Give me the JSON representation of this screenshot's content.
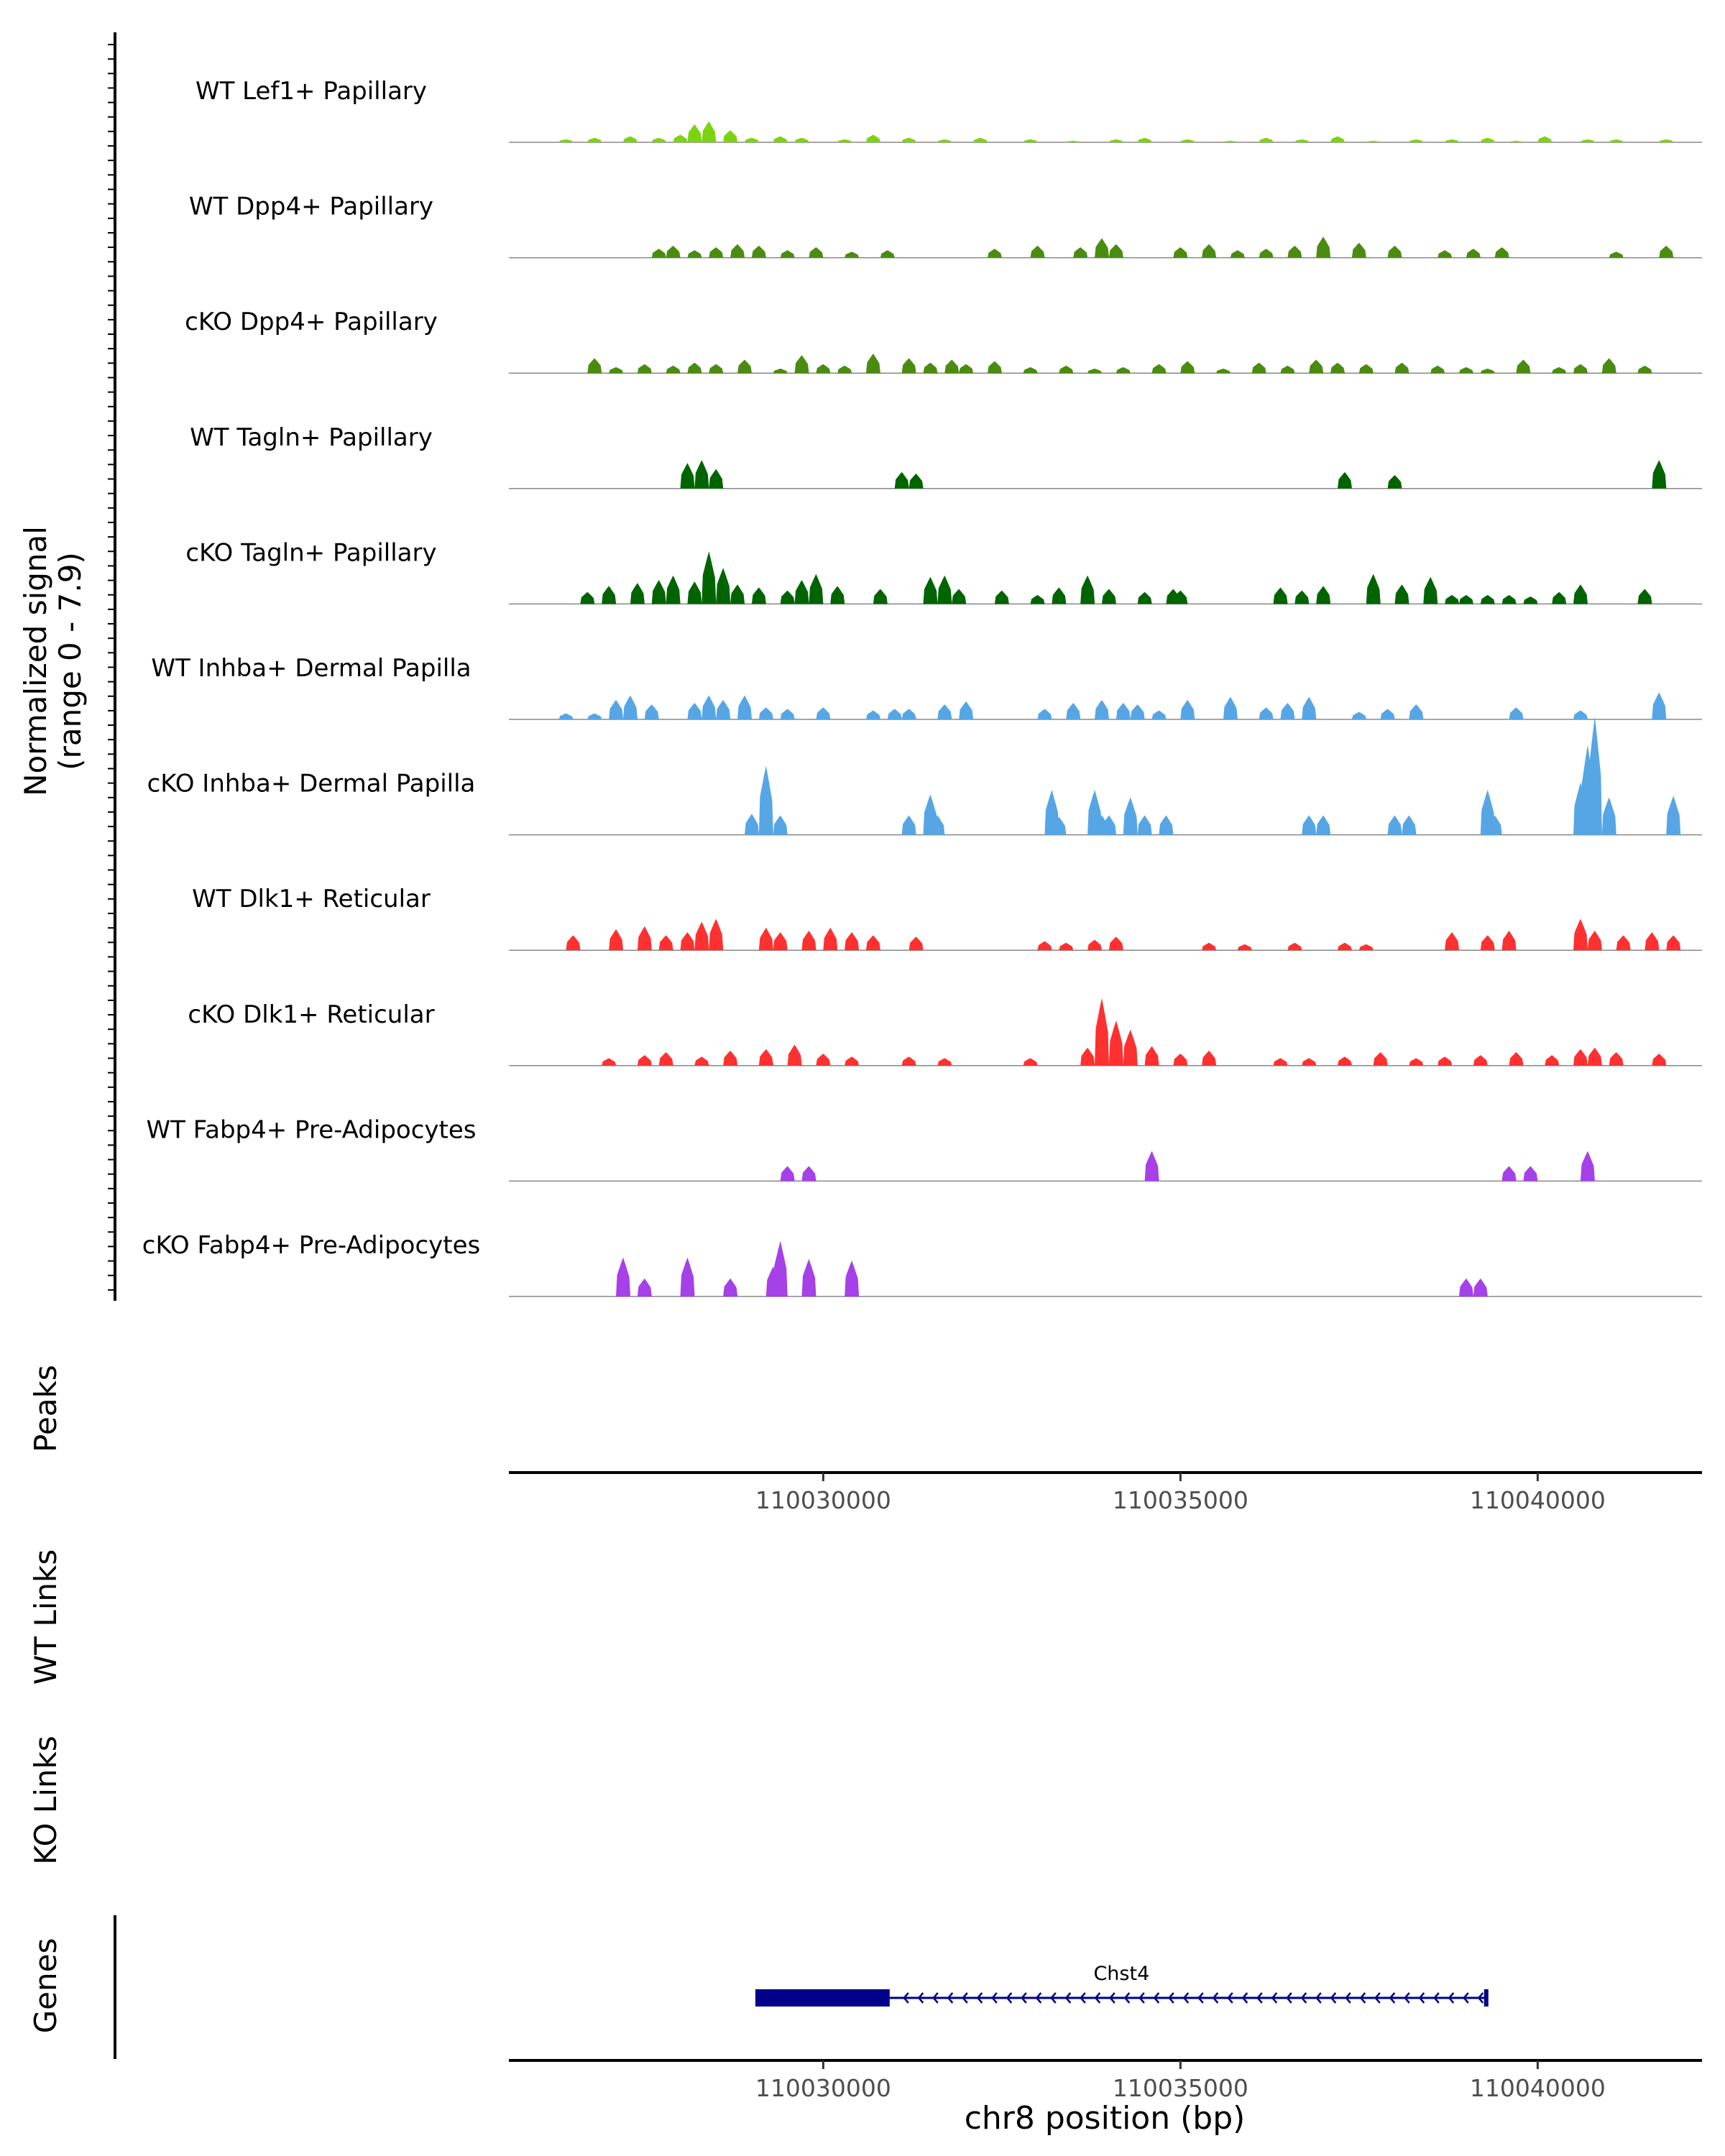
{
  "chart_data": {
    "type": "area",
    "ylabel_line1": "Normalized signal",
    "ylabel_line2": "(range 0 - 7.9)",
    "ylim": [
      0,
      7.9
    ],
    "xlim": [
      110025600,
      110042300
    ],
    "xticks": [
      110030000,
      110035000,
      110040000
    ],
    "xtick_labels": [
      "110030000",
      "110035000",
      "110040000"
    ],
    "xlabel": "chr8 position (bp)",
    "track_labels": {
      "peaks": "Peaks",
      "wt_links": "WT Links",
      "ko_links": "KO Links",
      "genes": "Genes"
    },
    "series": [
      {
        "name": "WT Lef1+ Papillary",
        "color": "#7CD312",
        "x": [
          110026400,
          110026800,
          110027300,
          110027700,
          110028000,
          110028200,
          110028400,
          110028700,
          110029000,
          110029400,
          110029700,
          110030300,
          110030700,
          110031200,
          110031700,
          110032200,
          110032900,
          110033500,
          110034100,
          110034500,
          110035100,
          110035700,
          110036200,
          110036700,
          110037200,
          110037700,
          110038300,
          110038800,
          110039300,
          110039700,
          110040100,
          110040700,
          110041100,
          110041800
        ],
        "values": [
          0.2,
          0.3,
          0.4,
          0.3,
          0.5,
          1.2,
          1.4,
          0.8,
          0.3,
          0.4,
          0.3,
          0.2,
          0.5,
          0.3,
          0.2,
          0.3,
          0.2,
          0.1,
          0.2,
          0.3,
          0.2,
          0.1,
          0.3,
          0.2,
          0.4,
          0.1,
          0.2,
          0.2,
          0.3,
          0.1,
          0.4,
          0.2,
          0.2,
          0.2
        ]
      },
      {
        "name": "WT Dpp4+ Papillary",
        "color": "#4A8C10",
        "x": [
          110027700,
          110027900,
          110028200,
          110028500,
          110028800,
          110029100,
          110029500,
          110029900,
          110030400,
          110030900,
          110032400,
          110033000,
          110033600,
          110033900,
          110034100,
          110035000,
          110035400,
          110035800,
          110036200,
          110036600,
          110037000,
          110037500,
          110038000,
          110038700,
          110039100,
          110039500,
          110041100,
          110041800
        ],
        "values": [
          0.6,
          0.8,
          0.5,
          0.7,
          0.9,
          0.8,
          0.5,
          0.7,
          0.4,
          0.5,
          0.6,
          0.8,
          0.7,
          1.3,
          0.9,
          0.7,
          0.9,
          0.5,
          0.6,
          0.8,
          1.4,
          1.0,
          0.8,
          0.5,
          0.6,
          0.7,
          0.4,
          0.8
        ]
      },
      {
        "name": "cKO Dpp4+ Papillary",
        "color": "#4A8C10",
        "x": [
          110026800,
          110027100,
          110027500,
          110027900,
          110028200,
          110028500,
          110028900,
          110029400,
          110029700,
          110030000,
          110030300,
          110030700,
          110031200,
          110031500,
          110031800,
          110032000,
          110032400,
          110032900,
          110033400,
          110033800,
          110034200,
          110034700,
          110035100,
          110035600,
          110036100,
          110036500,
          110036900,
          110037200,
          110037600,
          110038100,
          110038600,
          110039000,
          110039300,
          110039800,
          110040300,
          110040600,
          110041000,
          110041500
        ],
        "values": [
          1.0,
          0.4,
          0.6,
          0.5,
          0.7,
          0.6,
          0.9,
          0.3,
          1.2,
          0.6,
          0.5,
          1.3,
          1.0,
          0.7,
          0.9,
          0.6,
          0.8,
          0.4,
          0.5,
          0.3,
          0.4,
          0.6,
          0.8,
          0.3,
          0.7,
          0.5,
          0.9,
          0.7,
          0.6,
          0.7,
          0.5,
          0.4,
          0.3,
          0.9,
          0.4,
          0.6,
          1.0,
          0.5
        ]
      },
      {
        "name": "WT Tagln+ Papillary",
        "color": "#006400",
        "x": [
          110028100,
          110028300,
          110028500,
          110031100,
          110031300,
          110037300,
          110038000,
          110041700
        ],
        "values": [
          1.7,
          1.9,
          1.3,
          1.1,
          1.0,
          1.1,
          0.9,
          1.9
        ]
      },
      {
        "name": "cKO Tagln+ Papillary",
        "color": "#006400",
        "x": [
          110026700,
          110027000,
          110027400,
          110027700,
          110027900,
          110028200,
          110028400,
          110028600,
          110028800,
          110029100,
          110029500,
          110029700,
          110029900,
          110030200,
          110030800,
          110031500,
          110031700,
          110031900,
          110032500,
          110033000,
          110033300,
          110033700,
          110034000,
          110034500,
          110034900,
          110035000,
          110036400,
          110036700,
          110037000,
          110037700,
          110038100,
          110038500,
          110038800,
          110039000,
          110039300,
          110039600,
          110039900,
          110040300,
          110040600,
          110041500
        ],
        "values": [
          0.8,
          1.2,
          1.4,
          1.6,
          1.9,
          1.5,
          3.5,
          2.4,
          1.3,
          1.1,
          0.9,
          1.6,
          2.0,
          1.2,
          1.0,
          1.8,
          1.9,
          1.0,
          0.9,
          0.6,
          1.1,
          1.9,
          1.0,
          0.8,
          1.0,
          0.9,
          1.1,
          0.9,
          1.2,
          2.0,
          1.3,
          1.8,
          0.6,
          0.6,
          0.6,
          0.6,
          0.5,
          0.8,
          1.3,
          1.0
        ]
      },
      {
        "name": "WT Inhba+ Dermal Papilla",
        "color": "#56A6E6",
        "x": [
          110026400,
          110026800,
          110027100,
          110027300,
          110027600,
          110028200,
          110028400,
          110028600,
          110028900,
          110029200,
          110029500,
          110030000,
          110030700,
          110031000,
          110031200,
          110031700,
          110032000,
          110033100,
          110033500,
          110033900,
          110034200,
          110034400,
          110034700,
          110035100,
          110035700,
          110036200,
          110036500,
          110036800,
          110037500,
          110037900,
          110038300,
          110039700,
          110040600,
          110041700
        ],
        "values": [
          0.4,
          0.4,
          1.3,
          1.6,
          1.0,
          1.1,
          1.6,
          1.3,
          1.6,
          0.8,
          0.7,
          0.8,
          0.6,
          0.7,
          0.7,
          1.0,
          1.2,
          0.7,
          1.1,
          1.3,
          1.1,
          1.0,
          0.6,
          1.3,
          1.5,
          0.8,
          1.1,
          1.5,
          0.5,
          0.7,
          1.0,
          0.8,
          0.6,
          1.8
        ]
      },
      {
        "name": "cKO Inhba+ Dermal Papilla",
        "color": "#56A6E6",
        "x": [
          110029000,
          110029200,
          110029400,
          110031200,
          110031500,
          110031600,
          110033200,
          110033300,
          110033800,
          110033900,
          110034000,
          110034300,
          110034500,
          110034800,
          110036800,
          110037000,
          110038000,
          110038200,
          110039300,
          110039400,
          110040600,
          110040700,
          110040800,
          110041000,
          110041900
        ],
        "values": [
          1.4,
          4.6,
          1.3,
          1.3,
          2.7,
          1.3,
          3.0,
          1.2,
          3.0,
          1.3,
          1.3,
          2.5,
          1.3,
          1.3,
          1.3,
          1.3,
          1.3,
          1.3,
          3.0,
          1.3,
          3.5,
          6.0,
          7.9,
          2.5,
          2.6
        ]
      },
      {
        "name": "WT Dlk1+ Reticular",
        "color": "#FF3030",
        "x": [
          110026500,
          110027100,
          110027500,
          110027800,
          110028100,
          110028300,
          110028500,
          110029200,
          110029400,
          110029800,
          110030100,
          110030400,
          110030700,
          110031300,
          110033100,
          110033400,
          110033800,
          110034100,
          110035400,
          110035900,
          110036600,
          110037300,
          110037600,
          110038800,
          110039300,
          110039600,
          110040600,
          110040800,
          110041200,
          110041600,
          110041900
        ],
        "values": [
          1.0,
          1.4,
          1.6,
          1.0,
          1.2,
          1.9,
          2.1,
          1.5,
          1.2,
          1.3,
          1.5,
          1.2,
          1.0,
          0.9,
          0.6,
          0.5,
          0.7,
          0.9,
          0.5,
          0.4,
          0.5,
          0.5,
          0.4,
          1.2,
          1.0,
          1.3,
          2.1,
          1.3,
          1.0,
          1.2,
          1.0
        ]
      },
      {
        "name": "cKO Dlk1+ Reticular",
        "color": "#FF3030",
        "x": [
          110027000,
          110027500,
          110027800,
          110028300,
          110028700,
          110029200,
          110029600,
          110030000,
          110030400,
          110031200,
          110031700,
          110032900,
          110033700,
          110033900,
          110034100,
          110034300,
          110034600,
          110035000,
          110035400,
          110036400,
          110036800,
          110037300,
          110037800,
          110038300,
          110038700,
          110039200,
          110039700,
          110040200,
          110040600,
          110040800,
          110041100,
          110041700
        ],
        "values": [
          0.5,
          0.7,
          0.9,
          0.6,
          1.0,
          1.1,
          1.4,
          0.8,
          0.6,
          0.6,
          0.5,
          0.5,
          1.2,
          4.5,
          3.0,
          2.4,
          1.3,
          0.8,
          1.0,
          0.5,
          0.5,
          0.6,
          0.9,
          0.5,
          0.6,
          0.7,
          0.9,
          0.7,
          1.1,
          1.2,
          0.9,
          0.8
        ]
      },
      {
        "name": "WT Fabp4+ Pre-Adipocytes",
        "color": "#A640E8",
        "x": [
          110029500,
          110029800,
          110034600,
          110039600,
          110039900,
          110040700
        ],
        "values": [
          1.0,
          1.0,
          2.0,
          1.0,
          1.0,
          2.0
        ]
      },
      {
        "name": "cKO Fabp4+ Pre-Adipocytes",
        "color": "#A640E8",
        "x": [
          110027200,
          110027500,
          110028100,
          110028700,
          110029300,
          110029400,
          110029800,
          110030400,
          110039000,
          110039200
        ],
        "values": [
          2.6,
          1.2,
          2.6,
          1.2,
          2.0,
          3.7,
          2.5,
          2.4,
          1.2,
          1.2
        ]
      }
    ],
    "gene": {
      "name": "Chst4",
      "start": 110029050,
      "end": 110039300,
      "thick_start": 110029050,
      "thick_end": 110030930,
      "strand": "-"
    }
  }
}
